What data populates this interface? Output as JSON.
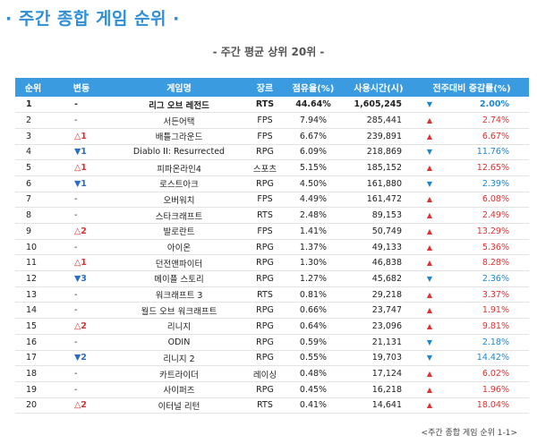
{
  "title": "· 주간 종합 게임 순위 ·",
  "subtitle": "- 주간 평균 상위 20위 -",
  "columns": [
    "순위",
    "변동",
    "게임명",
    "장르",
    "점유율(%)",
    "사용시간(시)",
    "전주대비 증감률(%)"
  ],
  "colors": {
    "header_bg": "#3a9be0",
    "title": "#2f8fd6",
    "up": "#e03131",
    "down": "#1d86d0"
  },
  "rows": [
    {
      "rank": "1",
      "change": "-",
      "change_dir": "same",
      "name": "리그 오브 레전드",
      "genre": "RTS",
      "share": "44.64%",
      "hours": "1,605,245",
      "dir": "down",
      "pct": "2.00%"
    },
    {
      "rank": "2",
      "change": "-",
      "change_dir": "same",
      "name": "서든어택",
      "genre": "FPS",
      "share": "7.94%",
      "hours": "285,441",
      "dir": "up",
      "pct": "2.74%"
    },
    {
      "rank": "3",
      "change": "△1",
      "change_dir": "up",
      "name": "배틀그라운드",
      "genre": "FPS",
      "share": "6.67%",
      "hours": "239,891",
      "dir": "up",
      "pct": "6.67%"
    },
    {
      "rank": "4",
      "change": "▼1",
      "change_dir": "down",
      "name": "Diablo II: Resurrected",
      "genre": "RPG",
      "share": "6.09%",
      "hours": "218,869",
      "dir": "down",
      "pct": "11.76%"
    },
    {
      "rank": "5",
      "change": "△1",
      "change_dir": "up",
      "name": "피파온라인4",
      "genre": "스포츠",
      "share": "5.15%",
      "hours": "185,152",
      "dir": "up",
      "pct": "12.65%"
    },
    {
      "rank": "6",
      "change": "▼1",
      "change_dir": "down",
      "name": "로스트아크",
      "genre": "RPG",
      "share": "4.50%",
      "hours": "161,880",
      "dir": "down",
      "pct": "2.39%"
    },
    {
      "rank": "7",
      "change": "-",
      "change_dir": "same",
      "name": "오버워치",
      "genre": "FPS",
      "share": "4.49%",
      "hours": "161,472",
      "dir": "up",
      "pct": "6.08%"
    },
    {
      "rank": "8",
      "change": "-",
      "change_dir": "same",
      "name": "스타크래프트",
      "genre": "RTS",
      "share": "2.48%",
      "hours": "89,153",
      "dir": "up",
      "pct": "2.49%"
    },
    {
      "rank": "9",
      "change": "△2",
      "change_dir": "up",
      "name": "발로란트",
      "genre": "FPS",
      "share": "1.41%",
      "hours": "50,749",
      "dir": "up",
      "pct": "13.29%"
    },
    {
      "rank": "10",
      "change": "-",
      "change_dir": "same",
      "name": "아이온",
      "genre": "RPG",
      "share": "1.37%",
      "hours": "49,133",
      "dir": "up",
      "pct": "5.36%"
    },
    {
      "rank": "11",
      "change": "△1",
      "change_dir": "up",
      "name": "던전앤파이터",
      "genre": "RPG",
      "share": "1.30%",
      "hours": "46,838",
      "dir": "up",
      "pct": "8.28%"
    },
    {
      "rank": "12",
      "change": "▼3",
      "change_dir": "down",
      "name": "메이플 스토리",
      "genre": "RPG",
      "share": "1.27%",
      "hours": "45,682",
      "dir": "down",
      "pct": "2.36%"
    },
    {
      "rank": "13",
      "change": "-",
      "change_dir": "same",
      "name": "워크래프트 3",
      "genre": "RTS",
      "share": "0.81%",
      "hours": "29,218",
      "dir": "up",
      "pct": "3.37%"
    },
    {
      "rank": "14",
      "change": "-",
      "change_dir": "same",
      "name": "월드 오브 워크래프트",
      "genre": "RPG",
      "share": "0.66%",
      "hours": "23,747",
      "dir": "up",
      "pct": "1.91%"
    },
    {
      "rank": "15",
      "change": "△2",
      "change_dir": "up",
      "name": "리니지",
      "genre": "RPG",
      "share": "0.64%",
      "hours": "23,096",
      "dir": "up",
      "pct": "9.81%"
    },
    {
      "rank": "16",
      "change": "-",
      "change_dir": "same",
      "name": "ODIN",
      "genre": "RPG",
      "share": "0.59%",
      "hours": "21,131",
      "dir": "down",
      "pct": "2.18%"
    },
    {
      "rank": "17",
      "change": "▼2",
      "change_dir": "down",
      "name": "리니지 2",
      "genre": "RPG",
      "share": "0.55%",
      "hours": "19,703",
      "dir": "down",
      "pct": "14.42%"
    },
    {
      "rank": "18",
      "change": "-",
      "change_dir": "same",
      "name": "카트라이더",
      "genre": "레이싱",
      "share": "0.48%",
      "hours": "17,124",
      "dir": "up",
      "pct": "6.02%"
    },
    {
      "rank": "19",
      "change": "-",
      "change_dir": "same",
      "name": "사이퍼즈",
      "genre": "RPG",
      "share": "0.45%",
      "hours": "16,218",
      "dir": "up",
      "pct": "1.96%"
    },
    {
      "rank": "20",
      "change": "△2",
      "change_dir": "up",
      "name": "이터널 리턴",
      "genre": "RTS",
      "share": "0.41%",
      "hours": "14,641",
      "dir": "up",
      "pct": "18.04%"
    }
  ],
  "caption": "<주간 종합 게임 순위 1-1>"
}
